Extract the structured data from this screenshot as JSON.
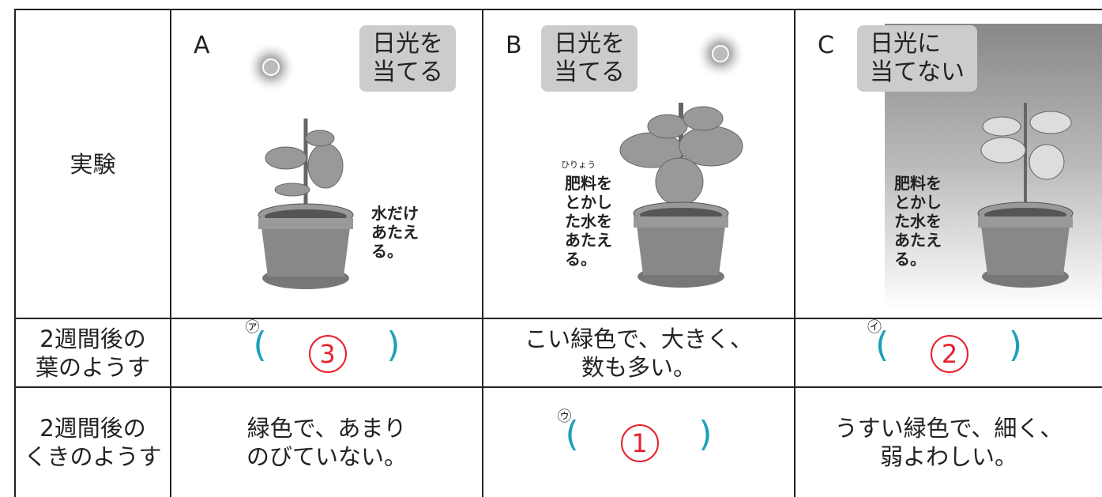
{
  "experiment": {
    "label": "実験",
    "columns": [
      {
        "letter": "A",
        "condition": [
          "日光を",
          "当てる"
        ],
        "note": [
          "水だけ",
          "あたえ",
          "る。"
        ]
      },
      {
        "letter": "B",
        "condition": [
          "日光を",
          "当てる"
        ],
        "ruby": "ひりょう",
        "note": [
          "肥料を",
          "とかし",
          "た水を",
          "あたえ",
          "る。"
        ]
      },
      {
        "letter": "C",
        "condition": [
          "日光に",
          "当てない"
        ],
        "note": [
          "肥料を",
          "とかし",
          "た水を",
          "あたえ",
          "る。"
        ]
      }
    ]
  },
  "rows": [
    {
      "label": [
        "2週間後の",
        "葉のようす"
      ],
      "cells": [
        {
          "marker": "㋐",
          "open": "(",
          "answer": "3",
          "close": ")"
        },
        {
          "text": [
            "こい緑色で、大きく、",
            "数も多い。"
          ]
        },
        {
          "marker": "㋑",
          "open": "(",
          "answer": "2",
          "close": ")"
        }
      ]
    },
    {
      "label": [
        "2週間後の",
        "くきのようす"
      ],
      "cells": [
        {
          "text": [
            "緑色で、あまり",
            "のびていない。"
          ]
        },
        {
          "marker": "㋒",
          "open": "(",
          "answer": "1",
          "close": ")"
        },
        {
          "text": [
            "うすい緑色で、細く、",
            "弱よわしい。"
          ]
        }
      ]
    }
  ]
}
